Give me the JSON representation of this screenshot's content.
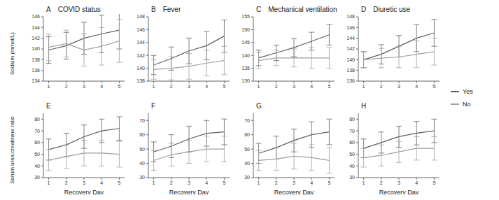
{
  "chart_data": [
    {
      "type": "line",
      "annotations": [
        "A"
      ],
      "title": "COVID status",
      "ylabel": "Sodium (mmol/L)",
      "x": [
        1,
        2,
        3,
        4,
        5
      ],
      "xlim": [
        0.7,
        5.3
      ],
      "xticks": [
        1,
        2,
        3,
        4,
        5
      ],
      "ylim": [
        134,
        146
      ],
      "yticks": [
        134,
        136,
        138,
        140,
        142,
        144,
        146
      ],
      "series": [
        {
          "name": "Yes",
          "color": "#5f5f5f",
          "values": [
            139.8,
            140.6,
            142.0,
            142.8,
            143.5
          ],
          "errors": [
            2.5,
            2.5,
            3.0,
            3.5,
            3.5
          ]
        },
        {
          "name": "No",
          "color": "#a0a0a0",
          "values": [
            140.3,
            141.0,
            139.8,
            140.5,
            141.5
          ],
          "errors": [
            2.5,
            2.5,
            3.0,
            3.5,
            4.0
          ]
        }
      ]
    },
    {
      "type": "line",
      "annotations": [
        "B"
      ],
      "title": "Fever",
      "x": [
        1,
        2,
        3,
        4,
        5
      ],
      "xlim": [
        0.7,
        5.3
      ],
      "xticks": [
        1,
        2,
        3,
        4,
        5
      ],
      "ylim": [
        138,
        148
      ],
      "yticks": [
        138,
        140,
        142,
        144,
        146,
        148
      ],
      "series": [
        {
          "name": "Yes",
          "color": "#5f5f5f",
          "values": [
            140.5,
            141.5,
            142.7,
            143.5,
            145.0
          ],
          "errors": [
            1.5,
            1.8,
            2.0,
            2.2,
            2.5
          ]
        },
        {
          "name": "No",
          "color": "#a0a0a0",
          "values": [
            139.8,
            140.0,
            140.3,
            140.8,
            141.2
          ],
          "errors": [
            1.5,
            1.8,
            2.0,
            2.0,
            2.2
          ]
        }
      ]
    },
    {
      "type": "line",
      "annotations": [
        "C"
      ],
      "title": "Mechanical ventilation",
      "x": [
        1,
        2,
        3,
        4,
        5
      ],
      "xlim": [
        0.7,
        5.3
      ],
      "xticks": [
        1,
        2,
        3,
        4,
        5
      ],
      "ylim": [
        130,
        155
      ],
      "yticks": [
        130,
        135,
        140,
        145,
        150,
        155
      ],
      "series": [
        {
          "name": "Yes",
          "color": "#5f5f5f",
          "values": [
            139.0,
            141.0,
            143.0,
            145.5,
            148.0
          ],
          "errors": [
            3.0,
            3.0,
            3.5,
            3.5,
            4.0
          ]
        },
        {
          "name": "No",
          "color": "#a0a0a0",
          "values": [
            138.0,
            139.0,
            139.0,
            139.0,
            139.0
          ],
          "errors": [
            3.0,
            3.0,
            3.5,
            4.0,
            4.0
          ]
        }
      ]
    },
    {
      "type": "line",
      "annotations": [
        "D"
      ],
      "title": "Diuretic use",
      "legend": "right",
      "x": [
        1,
        2,
        3,
        4,
        5
      ],
      "xlim": [
        0.7,
        5.3
      ],
      "xticks": [
        1,
        2,
        3,
        4,
        5
      ],
      "ylim": [
        136,
        148
      ],
      "yticks": [
        136,
        138,
        140,
        142,
        144,
        146,
        148
      ],
      "series": [
        {
          "name": "Yes",
          "color": "#5f5f5f",
          "values": [
            140.0,
            141.0,
            142.5,
            144.0,
            145.0
          ],
          "errors": [
            1.5,
            1.8,
            2.0,
            2.5,
            2.5
          ]
        },
        {
          "name": "No",
          "color": "#a0a0a0",
          "values": [
            140.0,
            140.3,
            140.5,
            141.0,
            141.5
          ],
          "errors": [
            1.5,
            1.8,
            2.0,
            2.5,
            2.5
          ]
        }
      ]
    },
    {
      "type": "line",
      "annotations": [
        "E"
      ],
      "ylabel": "Serum urea:creatinine ratio",
      "xlabel": "Recovery Day",
      "x": [
        1,
        2,
        3,
        4,
        5
      ],
      "xlim": [
        0.7,
        5.3
      ],
      "xticks": [
        1,
        2,
        3,
        4,
        5
      ],
      "ylim": [
        30,
        85
      ],
      "yticks": [
        30,
        40,
        50,
        60,
        70,
        80
      ],
      "series": [
        {
          "name": "Yes",
          "color": "#5f5f5f",
          "values": [
            54,
            58,
            65,
            70,
            72
          ],
          "errors": [
            9,
            10,
            10,
            10,
            10
          ]
        },
        {
          "name": "No",
          "color": "#a0a0a0",
          "values": [
            45,
            48,
            51,
            51,
            50
          ],
          "errors": [
            9,
            10,
            11,
            11,
            11
          ]
        }
      ]
    },
    {
      "type": "line",
      "annotations": [
        "F"
      ],
      "xlabel": "Recovery Day",
      "x": [
        1,
        2,
        3,
        4,
        5
      ],
      "xlim": [
        0.7,
        5.3
      ],
      "xticks": [
        1,
        2,
        3,
        4,
        5
      ],
      "ylim": [
        30,
        75
      ],
      "yticks": [
        30,
        40,
        50,
        60,
        70
      ],
      "series": [
        {
          "name": "Yes",
          "color": "#5f5f5f",
          "values": [
            48,
            52,
            57,
            61,
            62
          ],
          "errors": [
            7,
            8,
            9,
            9,
            9
          ]
        },
        {
          "name": "No",
          "color": "#a0a0a0",
          "values": [
            42,
            46,
            48,
            50,
            50
          ],
          "errors": [
            7,
            8,
            8,
            9,
            9
          ]
        }
      ]
    },
    {
      "type": "line",
      "annotations": [
        "G"
      ],
      "xlabel": "Recovery Day",
      "x": [
        1,
        2,
        3,
        4,
        5
      ],
      "xlim": [
        0.7,
        5.3
      ],
      "xticks": [
        1,
        2,
        3,
        4,
        5
      ],
      "ylim": [
        30,
        75
      ],
      "yticks": [
        30,
        40,
        50,
        60,
        70
      ],
      "series": [
        {
          "name": "Yes",
          "color": "#5f5f5f",
          "values": [
            47,
            51,
            56,
            60,
            62
          ],
          "errors": [
            7,
            8,
            8,
            9,
            9
          ]
        },
        {
          "name": "No",
          "color": "#a0a0a0",
          "values": [
            42,
            43,
            45,
            44,
            42
          ],
          "errors": [
            7,
            8,
            9,
            9,
            9
          ]
        }
      ]
    },
    {
      "type": "line",
      "annotations": [
        "H"
      ],
      "xlabel": "Recovery Day",
      "x": [
        1,
        2,
        3,
        4,
        5
      ],
      "xlim": [
        0.7,
        5.3
      ],
      "xticks": [
        1,
        2,
        3,
        4,
        5
      ],
      "ylim": [
        30,
        85
      ],
      "yticks": [
        30,
        40,
        50,
        60,
        70,
        80
      ],
      "series": [
        {
          "name": "Yes",
          "color": "#5f5f5f",
          "values": [
            55,
            60,
            65,
            68,
            70
          ],
          "errors": [
            8,
            9,
            9,
            10,
            10
          ]
        },
        {
          "name": "No",
          "color": "#a0a0a0",
          "values": [
            47,
            49,
            52,
            55,
            55
          ],
          "errors": [
            8,
            9,
            9,
            10,
            10
          ]
        }
      ]
    }
  ]
}
